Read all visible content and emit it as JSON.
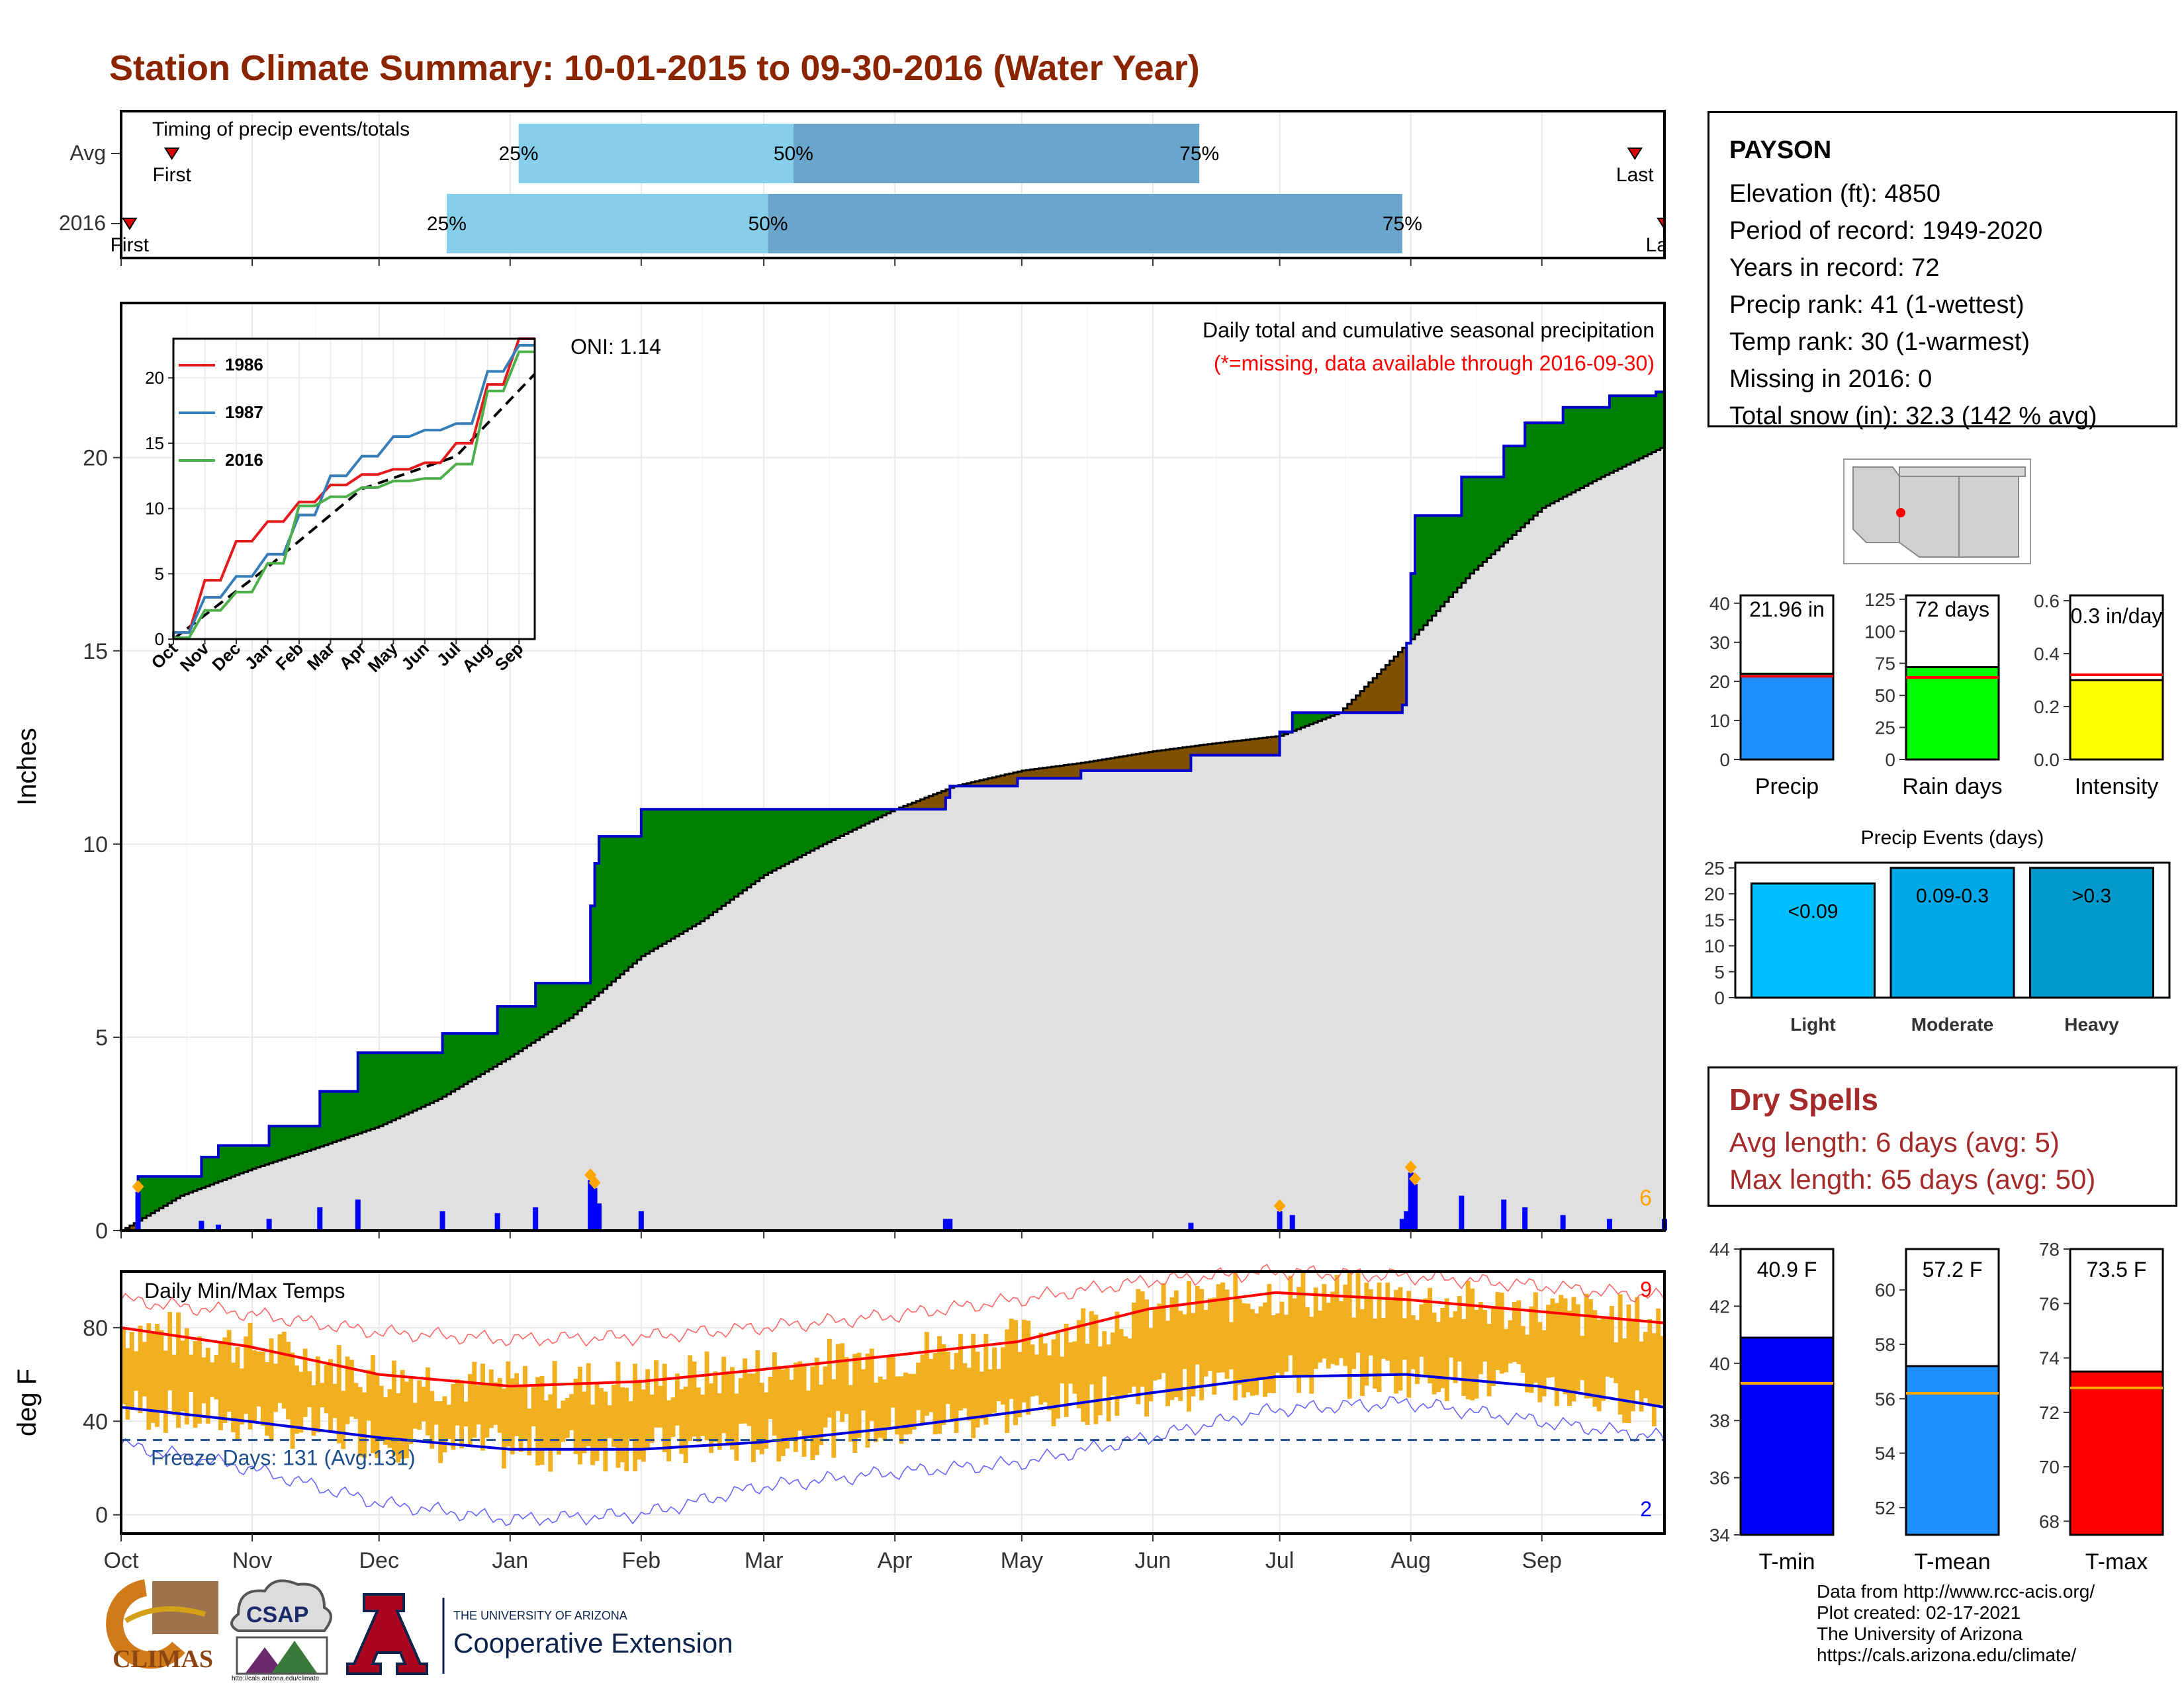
{
  "page": {
    "title": "Station Climate Summary: 10-01-2015 to 09-30-2016 (Water Year)"
  },
  "station": {
    "name": "PAYSON",
    "lines": [
      "Elevation (ft): 4850",
      "Period of record: 1949-2020",
      "Years in record: 72",
      "Precip rank: 41 (1-wettest)",
      "Temp rank: 30 (1-warmest)",
      "Missing in 2016: 0",
      "Total snow (in): 32.3 (142 % avg)"
    ]
  },
  "dry_spells": {
    "title": "Dry Spells",
    "avg": "Avg length: 6 days (avg: 5)",
    "max": "Max length: 65 days (avg: 50)"
  },
  "credits": [
    "Data from http://www.rcc-acis.org/",
    "Plot created: 02-17-2021",
    "The University of Arizona",
    "https://cals.arizona.edu/climate/"
  ],
  "logos": {
    "climas": "CLIMAS",
    "csap": "CSAP",
    "csap_url": "http://cals.arizona.edu/climate",
    "ua_top": "THE UNIVERSITY OF ARIZONA",
    "ua_bottom": "Cooperative Extension"
  },
  "months": [
    "Oct",
    "Nov",
    "Dec",
    "Jan",
    "Feb",
    "Mar",
    "Apr",
    "May",
    "Jun",
    "Jul",
    "Aug",
    "Sep"
  ],
  "colors": {
    "above": "#008000",
    "below": "#7f5000",
    "normal_fill": "#e0e0e0",
    "obs_line": "#0000cc",
    "quart_light": "#87ceeb",
    "quart_dark": "#6aa5cc",
    "temp_bar": "#f0b020",
    "tmax_line": "#ff0000",
    "tmin_line": "#0000dd"
  },
  "chart_data": [
    {
      "id": "timing",
      "type": "bar",
      "title": "Timing of precip events/totals",
      "rows": [
        {
          "label": "Avg",
          "first": "Oct 13",
          "q25": "Jan 03",
          "q50": "Mar 08",
          "q75": "Jun 12",
          "last": "Sep 23",
          "markers": {
            "first": "First",
            "last": "Last"
          }
        },
        {
          "label": "2016",
          "first": "Oct 03",
          "q25": "Dec 17",
          "q50": "Mar 02",
          "q75": "Jul 30",
          "last": "Sep 30",
          "markers": {
            "first": "First",
            "last": "Last"
          }
        }
      ],
      "quartile_labels": [
        "25%",
        "50%",
        "75%"
      ]
    },
    {
      "id": "precip",
      "type": "area",
      "title": "Daily total and cumulative seasonal precipitation",
      "subtitle": "(*=missing, data available through 2016-09-30)",
      "annotation": "ONI: 1.14",
      "ylabel": "Inches",
      "ylim": [
        0,
        24
      ],
      "yticks": [
        0,
        5,
        10,
        15,
        20
      ],
      "corner_count": "6",
      "observed_cumulative": [
        [
          "Oct 01",
          0
        ],
        [
          "Oct 03",
          0
        ],
        [
          "Oct 05",
          1.4
        ],
        [
          "Oct 17",
          1.4
        ],
        [
          "Oct 20",
          1.9
        ],
        [
          "Oct 24",
          2.2
        ],
        [
          "Nov 03",
          2.2
        ],
        [
          "Nov 05",
          2.7
        ],
        [
          "Nov 15",
          2.7
        ],
        [
          "Nov 17",
          3.6
        ],
        [
          "Nov 24",
          3.6
        ],
        [
          "Nov 26",
          4.6
        ],
        [
          "Dec 15",
          4.6
        ],
        [
          "Dec 16",
          5.1
        ],
        [
          "Dec 28",
          5.1
        ],
        [
          "Dec 29",
          5.8
        ],
        [
          "Jan 06",
          5.8
        ],
        [
          "Jan 07",
          6.4
        ],
        [
          "Jan 19",
          6.4
        ],
        [
          "Jan 20",
          8.4
        ],
        [
          "Jan 21",
          9.5
        ],
        [
          "Jan 22",
          10.2
        ],
        [
          "Jan 29",
          10.2
        ],
        [
          "Jan 31",
          10.2
        ],
        [
          "Feb 01",
          10.9
        ],
        [
          "Mar 31",
          10.9
        ],
        [
          "Apr 08",
          10.9
        ],
        [
          "Apr 13",
          11.2
        ],
        [
          "Apr 14",
          11.5
        ],
        [
          "Apr 30",
          11.7
        ],
        [
          "May 15",
          11.9
        ],
        [
          "Jun 10",
          12.3
        ],
        [
          "Jun 30",
          12.3
        ],
        [
          "Jul 01",
          12.9
        ],
        [
          "Jul 04",
          13.4
        ],
        [
          "Jul 09",
          13.4
        ],
        [
          "Jul 14",
          13.4
        ],
        [
          "Jul 30",
          13.6
        ],
        [
          "Jul 31",
          15.2
        ],
        [
          "Aug 01",
          17.0
        ],
        [
          "Aug 02",
          18.5
        ],
        [
          "Aug 12",
          18.5
        ],
        [
          "Aug 13",
          19.5
        ],
        [
          "Aug 20",
          19.5
        ],
        [
          "Aug 23",
          20.3
        ],
        [
          "Aug 28",
          20.9
        ],
        [
          "Sep 05",
          20.9
        ],
        [
          "Sep 06",
          21.3
        ],
        [
          "Sep 15",
          21.3
        ],
        [
          "Sep 17",
          21.6
        ],
        [
          "Sep 28",
          21.7
        ],
        [
          "Sep 30",
          22.0
        ]
      ],
      "normal_cumulative": [
        [
          "Oct 01",
          0
        ],
        [
          "Oct 15",
          0.9
        ],
        [
          "Nov 01",
          1.6
        ],
        [
          "Nov 15",
          2.1
        ],
        [
          "Dec 01",
          2.7
        ],
        [
          "Dec 15",
          3.4
        ],
        [
          "Jan 01",
          4.5
        ],
        [
          "Jan 15",
          5.5
        ],
        [
          "Feb 01",
          7.1
        ],
        [
          "Feb 15",
          8.0
        ],
        [
          "Mar 01",
          9.2
        ],
        [
          "Mar 15",
          10.0
        ],
        [
          "Apr 01",
          10.9
        ],
        [
          "Apr 15",
          11.5
        ],
        [
          "May 01",
          11.9
        ],
        [
          "May 15",
          12.1
        ],
        [
          "Jun 01",
          12.4
        ],
        [
          "Jun 15",
          12.6
        ],
        [
          "Jul 01",
          12.8
        ],
        [
          "Jul 15",
          13.4
        ],
        [
          "Aug 01",
          15.3
        ],
        [
          "Aug 15",
          17.0
        ],
        [
          "Sep 01",
          18.7
        ],
        [
          "Sep 15",
          19.5
        ],
        [
          "Sep 30",
          20.3
        ]
      ],
      "daily": [
        [
          "Oct 05",
          1.0
        ],
        [
          "Oct 20",
          0.25
        ],
        [
          "Oct 24",
          0.15
        ],
        [
          "Nov 05",
          0.3
        ],
        [
          "Nov 17",
          0.6
        ],
        [
          "Nov 26",
          0.8
        ],
        [
          "Dec 16",
          0.5
        ],
        [
          "Dec 29",
          0.45
        ],
        [
          "Jan 07",
          0.6
        ],
        [
          "Jan 20",
          1.3
        ],
        [
          "Jan 21",
          1.1
        ],
        [
          "Jan 22",
          0.7
        ],
        [
          "Feb 01",
          0.5
        ],
        [
          "Apr 13",
          0.3
        ],
        [
          "Apr 14",
          0.3
        ],
        [
          "Jun 10",
          0.2
        ],
        [
          "Jul 01",
          0.5
        ],
        [
          "Jul 04",
          0.4
        ],
        [
          "Jul 30",
          0.3
        ],
        [
          "Jul 31",
          0.5
        ],
        [
          "Aug 01",
          1.5
        ],
        [
          "Aug 02",
          1.2
        ],
        [
          "Aug 13",
          0.9
        ],
        [
          "Aug 23",
          0.8
        ],
        [
          "Aug 28",
          0.6
        ],
        [
          "Sep 06",
          0.4
        ],
        [
          "Sep 17",
          0.3
        ],
        [
          "Sep 30",
          0.3
        ]
      ],
      "snow_markers": [
        "Oct 05",
        "Jan 20",
        "Jan 21",
        "Jul 01",
        "Aug 01",
        "Aug 02"
      ]
    },
    {
      "id": "inset",
      "type": "line",
      "xlabels": [
        "Oct",
        "Nov",
        "Dec",
        "Jan",
        "Feb",
        "Mar",
        "Apr",
        "May",
        "Jun",
        "Jul",
        "Aug",
        "Sep"
      ],
      "yticks": [
        0,
        5,
        10,
        15,
        20
      ],
      "ylim": [
        0,
        23
      ],
      "series": [
        {
          "name": "1986",
          "values": [
            0.5,
            4.5,
            7.5,
            9.0,
            10.5,
            11.8,
            12.6,
            13.0,
            13.5,
            15.0,
            19.5,
            23.0
          ]
        },
        {
          "name": "1987",
          "values": [
            0.5,
            3.2,
            4.8,
            6.5,
            9.5,
            12.5,
            14.0,
            15.5,
            16.0,
            16.5,
            20.5,
            22.5
          ]
        },
        {
          "name": "2016",
          "values": [
            0.1,
            2.2,
            3.6,
            5.8,
            10.2,
            10.9,
            11.6,
            12.1,
            12.3,
            13.4,
            19.0,
            22.0
          ]
        }
      ]
    },
    {
      "id": "temps",
      "type": "bar",
      "title": "Daily Min/Max Temps",
      "ylabel": "deg F",
      "yticks": [
        0,
        40,
        80
      ],
      "ylim": [
        -8,
        104
      ],
      "freeze_line": 32,
      "freeze_label": "Freeze Days: 131 (Avg:131)",
      "count_max": "9",
      "count_min": "2",
      "normal_max": [
        [
          0,
          80
        ],
        [
          30,
          72
        ],
        [
          61,
          60
        ],
        [
          92,
          55
        ],
        [
          123,
          57
        ],
        [
          151,
          62
        ],
        [
          182,
          68
        ],
        [
          212,
          74
        ],
        [
          243,
          88
        ],
        [
          273,
          95
        ],
        [
          304,
          92
        ],
        [
          335,
          87
        ],
        [
          365,
          82
        ]
      ],
      "normal_min": [
        [
          0,
          46
        ],
        [
          30,
          40
        ],
        [
          61,
          33
        ],
        [
          92,
          28
        ],
        [
          123,
          28
        ],
        [
          151,
          31
        ],
        [
          182,
          37
        ],
        [
          212,
          44
        ],
        [
          243,
          52
        ],
        [
          273,
          59
        ],
        [
          304,
          60
        ],
        [
          335,
          55
        ],
        [
          365,
          46
        ]
      ],
      "record_max": [
        [
          0,
          92
        ],
        [
          30,
          86
        ],
        [
          61,
          78
        ],
        [
          92,
          75
        ],
        [
          123,
          76
        ],
        [
          151,
          80
        ],
        [
          182,
          85
        ],
        [
          212,
          92
        ],
        [
          243,
          100
        ],
        [
          273,
          104
        ],
        [
          304,
          102
        ],
        [
          335,
          98
        ],
        [
          365,
          93
        ]
      ],
      "record_min": [
        [
          0,
          30
        ],
        [
          30,
          20
        ],
        [
          61,
          5
        ],
        [
          92,
          -2
        ],
        [
          123,
          0
        ],
        [
          151,
          12
        ],
        [
          182,
          18
        ],
        [
          212,
          22
        ],
        [
          243,
          33
        ],
        [
          273,
          45
        ],
        [
          304,
          48
        ],
        [
          335,
          40
        ],
        [
          365,
          33
        ]
      ]
    },
    {
      "id": "precip-gauges",
      "type": "bar",
      "bars": [
        {
          "label": "Precip",
          "value": 21.96,
          "avg": 21.3,
          "text": "21.96 in",
          "ylim": [
            0,
            42
          ],
          "yticks": [
            0,
            10,
            20,
            30,
            40
          ],
          "color": "#1e90ff"
        },
        {
          "label": "Rain days",
          "value": 72,
          "avg": 64,
          "text": "72 days",
          "ylim": [
            0,
            128
          ],
          "yticks": [
            0,
            25,
            50,
            75,
            100,
            125
          ],
          "color": "#00ff00"
        },
        {
          "label": "Intensity",
          "value": 0.3,
          "avg": 0.32,
          "text": "0.3 in/day",
          "ylim": [
            0,
            0.62
          ],
          "yticks": [
            "0.0",
            "0.2",
            "0.4",
            "0.6"
          ],
          "color": "#ffff00"
        }
      ]
    },
    {
      "id": "events",
      "type": "bar",
      "title": "Precip Events (days)",
      "categories": [
        "Light",
        "Moderate",
        "Heavy"
      ],
      "bin_labels": [
        "<0.09",
        "0.09-0.3",
        ">0.3"
      ],
      "values": [
        22,
        25,
        25
      ],
      "ylim": [
        0,
        26
      ],
      "yticks": [
        0,
        5,
        10,
        15,
        20,
        25
      ]
    },
    {
      "id": "temp-gauges",
      "type": "bar",
      "bars": [
        {
          "label": "T-min",
          "value": 40.9,
          "avg": 39.3,
          "text": "40.9 F",
          "ylim": [
            34,
            44
          ],
          "yticks": [
            34,
            36,
            38,
            40,
            42,
            44
          ],
          "color": "#0000ff"
        },
        {
          "label": "T-mean",
          "value": 57.2,
          "avg": 56.2,
          "text": "57.2 F",
          "ylim": [
            51,
            61.5
          ],
          "yticks": [
            52,
            54,
            56,
            58,
            60
          ],
          "color": "#1e90ff"
        },
        {
          "label": "T-max",
          "value": 73.5,
          "avg": 72.9,
          "text": "73.5 F",
          "ylim": [
            67.5,
            78
          ],
          "yticks": [
            68,
            70,
            72,
            74,
            76,
            78
          ],
          "color": "#ff0000"
        }
      ]
    }
  ]
}
